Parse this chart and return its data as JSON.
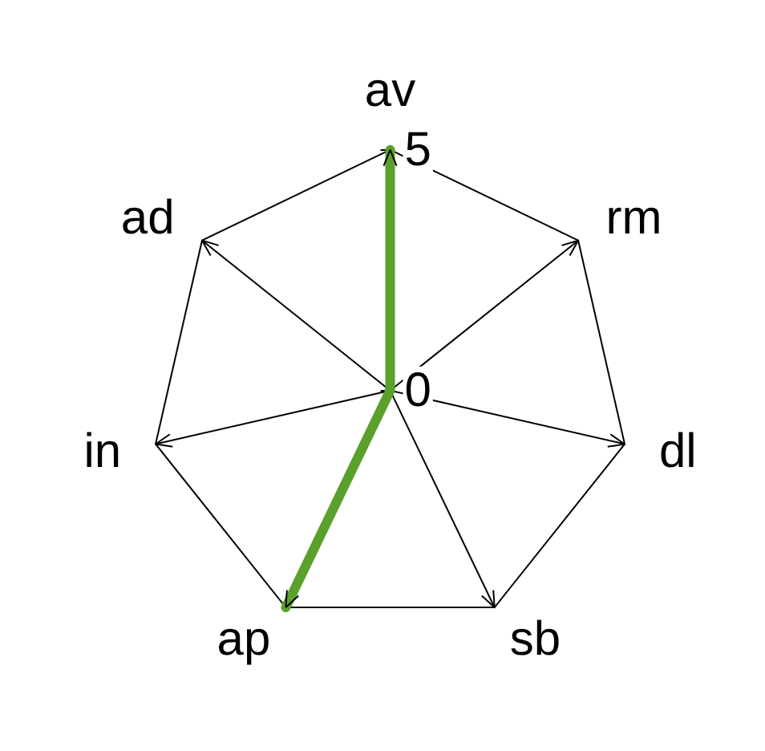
{
  "chart_data": {
    "type": "radar",
    "categories": [
      "av",
      "rm",
      "dl",
      "sb",
      "ap",
      "in",
      "ad"
    ],
    "series": [
      {
        "color": "#5aa02c",
        "values": [
          5,
          0,
          0,
          0,
          5,
          0,
          0
        ]
      }
    ],
    "ylim": [
      0,
      5
    ],
    "yticks": [
      0,
      5
    ],
    "grid": true,
    "marker": "none",
    "line_style": "solid"
  }
}
